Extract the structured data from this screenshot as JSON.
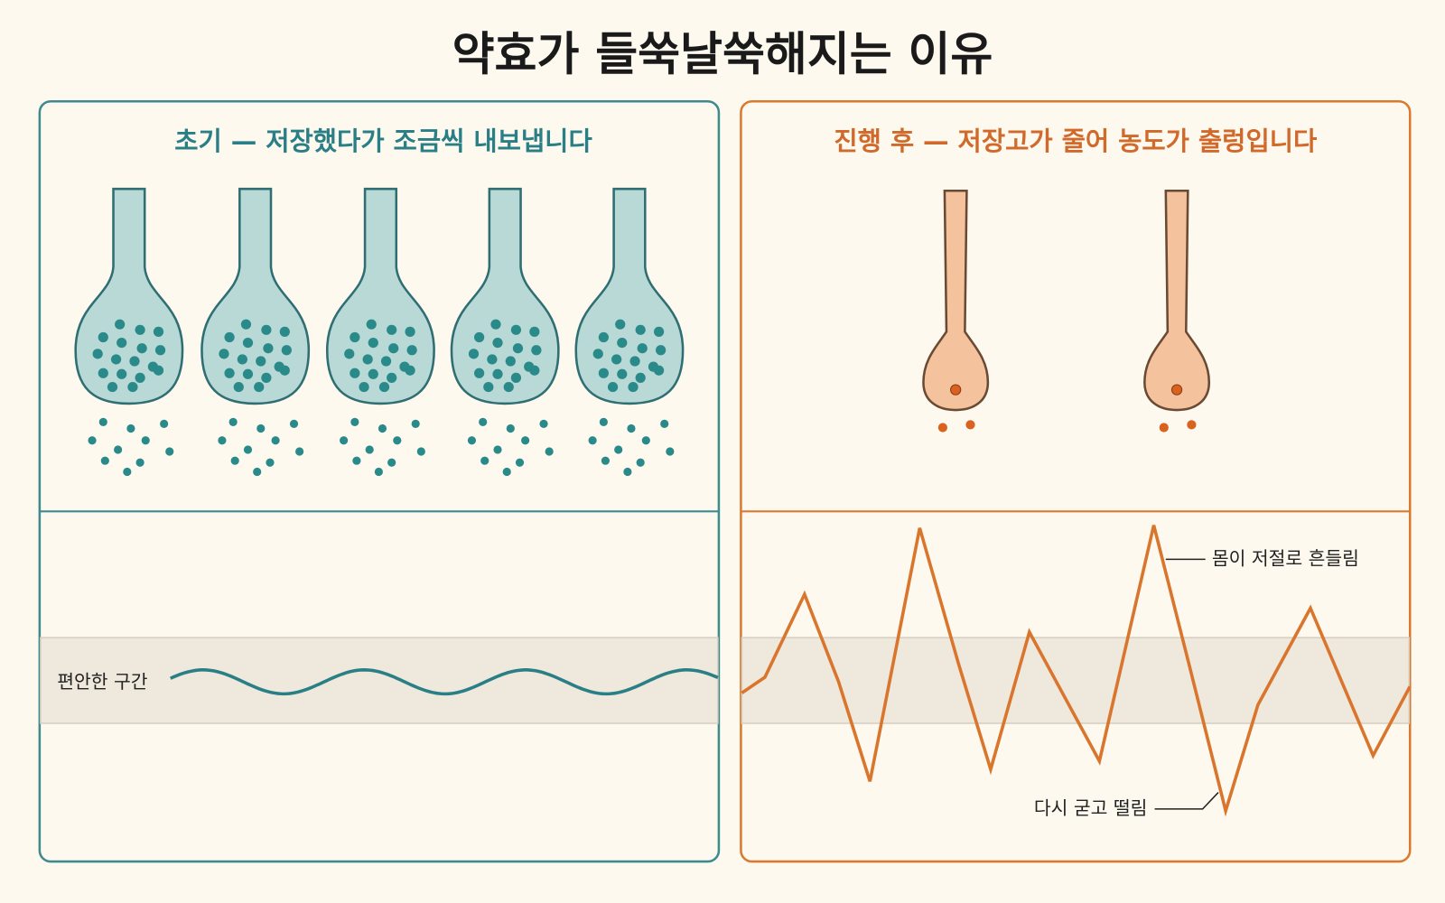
{
  "title": "약효가 들쑥날쑥해지는 이유",
  "panels": [
    {
      "heading": "초기 — 저장했다가 조금씩 내보냅니다",
      "band_label": "편안한 구간"
    },
    {
      "heading": "진행 후 — 저장고가 줄어 농도가 출렁입니다",
      "annotations": [
        "몸이 저절로 흔들림",
        "다시 굳고 떨림"
      ]
    }
  ]
}
